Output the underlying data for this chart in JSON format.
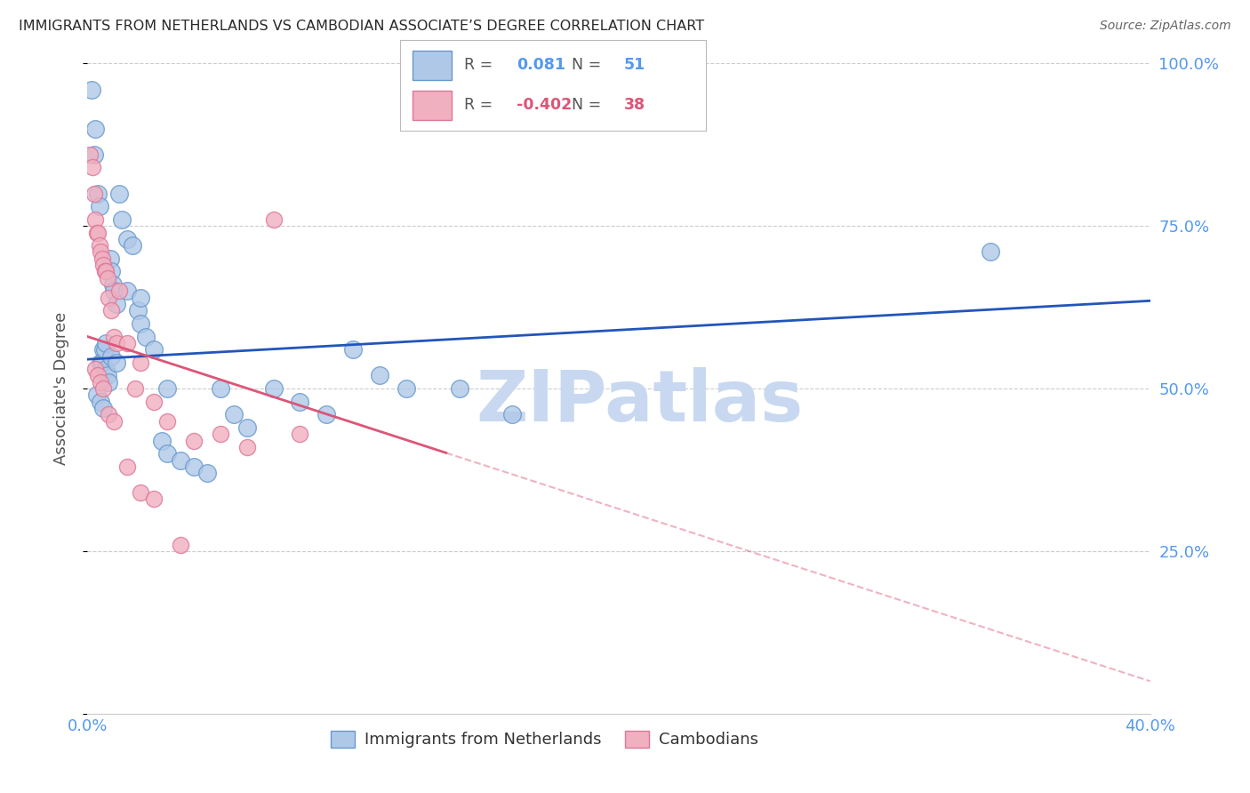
{
  "title": "IMMIGRANTS FROM NETHERLANDS VS CAMBODIAN ASSOCIATE’S DEGREE CORRELATION CHART",
  "source": "Source: ZipAtlas.com",
  "ylabel": "Associate's Degree",
  "r_blue": 0.081,
  "n_blue": 51,
  "r_pink": -0.402,
  "n_pink": 38,
  "legend_label_blue": "Immigrants from Netherlands",
  "legend_label_pink": "Cambodians",
  "watermark": "ZIPatlas",
  "y_ticks": [
    0.0,
    25.0,
    50.0,
    75.0,
    100.0
  ],
  "x_min": 0.0,
  "x_max": 40.0,
  "y_min": 0.0,
  "y_max": 100.0,
  "title_color": "#2a2a2a",
  "source_color": "#666666",
  "axis_label_color": "#555555",
  "right_tick_color": "#5599ee",
  "bottom_tick_color": "#5599ee",
  "grid_color": "#cccccc",
  "blue_dot_facecolor": "#b0c8e8",
  "blue_dot_edgecolor": "#6699cc",
  "pink_dot_facecolor": "#f0b0c0",
  "pink_dot_edgecolor": "#dd7799",
  "blue_line_color": "#2255bb",
  "pink_line_color": "#dd5577",
  "watermark_color": "#c8d8f0",
  "blue_line_x0": 0.0,
  "blue_line_y0": 54.5,
  "blue_line_x1": 40.0,
  "blue_line_y1": 63.5,
  "pink_line_x0": 0.0,
  "pink_line_y0": 58.0,
  "pink_line_x1": 40.0,
  "pink_line_y1": 5.0,
  "pink_solid_end_x": 13.5,
  "blue_scatter_x": [
    0.15,
    0.3,
    0.4,
    0.45,
    0.5,
    0.55,
    0.6,
    0.65,
    0.7,
    0.75,
    0.8,
    0.85,
    0.9,
    0.95,
    1.0,
    1.1,
    1.2,
    1.3,
    1.5,
    1.7,
    1.9,
    2.0,
    2.2,
    2.5,
    2.8,
    3.0,
    3.5,
    4.0,
    4.5,
    5.0,
    5.5,
    6.0,
    7.0,
    8.0,
    9.0,
    10.0,
    11.0,
    12.0,
    14.0,
    16.0,
    34.0,
    0.35,
    0.5,
    0.6,
    0.7,
    0.9,
    1.1,
    1.5,
    2.0,
    3.0,
    0.25
  ],
  "blue_scatter_y": [
    96.0,
    90.0,
    80.0,
    78.0,
    54.0,
    54.0,
    56.0,
    56.0,
    53.0,
    52.0,
    51.0,
    70.0,
    68.0,
    66.0,
    65.0,
    63.0,
    80.0,
    76.0,
    73.0,
    72.0,
    62.0,
    60.0,
    58.0,
    56.0,
    42.0,
    40.0,
    39.0,
    38.0,
    37.0,
    50.0,
    46.0,
    44.0,
    50.0,
    48.0,
    46.0,
    56.0,
    52.0,
    50.0,
    50.0,
    46.0,
    71.0,
    49.0,
    48.0,
    47.0,
    57.0,
    55.0,
    54.0,
    65.0,
    64.0,
    50.0,
    86.0
  ],
  "pink_scatter_x": [
    0.1,
    0.2,
    0.25,
    0.3,
    0.35,
    0.4,
    0.45,
    0.5,
    0.55,
    0.6,
    0.65,
    0.7,
    0.75,
    0.8,
    0.9,
    1.0,
    1.1,
    1.2,
    1.5,
    1.8,
    2.0,
    2.5,
    3.0,
    4.0,
    5.0,
    6.0,
    7.0,
    0.3,
    0.4,
    0.5,
    0.6,
    0.8,
    1.0,
    1.5,
    2.0,
    2.5,
    3.5,
    8.0
  ],
  "pink_scatter_y": [
    86.0,
    84.0,
    80.0,
    76.0,
    74.0,
    74.0,
    72.0,
    71.0,
    70.0,
    69.0,
    68.0,
    68.0,
    67.0,
    64.0,
    62.0,
    58.0,
    57.0,
    65.0,
    57.0,
    50.0,
    54.0,
    48.0,
    45.0,
    42.0,
    43.0,
    41.0,
    76.0,
    53.0,
    52.0,
    51.0,
    50.0,
    46.0,
    45.0,
    38.0,
    34.0,
    33.0,
    26.0,
    43.0
  ]
}
